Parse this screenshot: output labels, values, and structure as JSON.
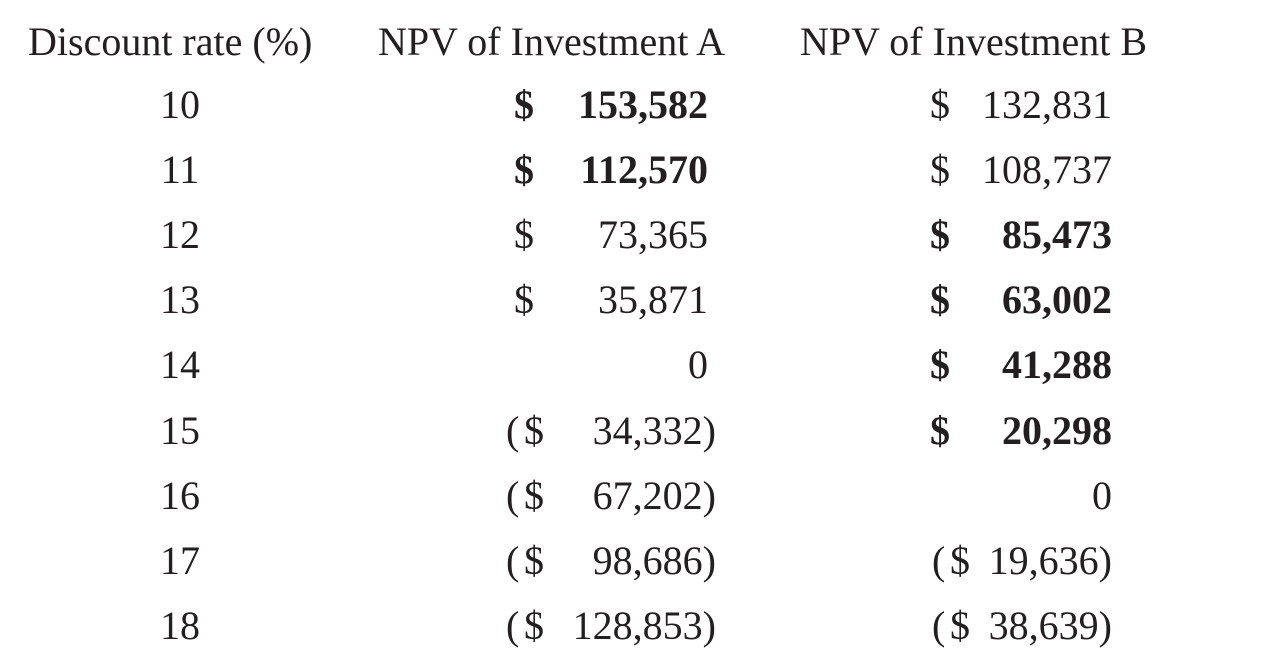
{
  "headers": {
    "rate": "Discount rate (%)",
    "a": "NPV of Investment A",
    "b": "NPV of Investment B"
  },
  "rows": [
    {
      "rate": "10",
      "a": {
        "cur": "$",
        "num": "153,582",
        "neg": false,
        "bold": true
      },
      "b": {
        "cur": "$",
        "num": "132,831",
        "neg": false,
        "bold": false
      }
    },
    {
      "rate": "11",
      "a": {
        "cur": "$",
        "num": "112,570",
        "neg": false,
        "bold": true
      },
      "b": {
        "cur": "$",
        "num": "108,737",
        "neg": false,
        "bold": false
      }
    },
    {
      "rate": "12",
      "a": {
        "cur": "$",
        "num": "73,365",
        "neg": false,
        "bold": false
      },
      "b": {
        "cur": "$",
        "num": "85,473",
        "neg": false,
        "bold": true
      }
    },
    {
      "rate": "13",
      "a": {
        "cur": "$",
        "num": "35,871",
        "neg": false,
        "bold": false
      },
      "b": {
        "cur": "$",
        "num": "63,002",
        "neg": false,
        "bold": true
      }
    },
    {
      "rate": "14",
      "a": {
        "cur": "",
        "num": "0",
        "neg": false,
        "bold": false
      },
      "b": {
        "cur": "$",
        "num": "41,288",
        "neg": false,
        "bold": true
      }
    },
    {
      "rate": "15",
      "a": {
        "cur": "$",
        "num": "34,332",
        "neg": true,
        "bold": false
      },
      "b": {
        "cur": "$",
        "num": "20,298",
        "neg": false,
        "bold": true
      }
    },
    {
      "rate": "16",
      "a": {
        "cur": "$",
        "num": "67,202",
        "neg": true,
        "bold": false
      },
      "b": {
        "cur": "",
        "num": "0",
        "neg": false,
        "bold": false
      }
    },
    {
      "rate": "17",
      "a": {
        "cur": "$",
        "num": "98,686",
        "neg": true,
        "bold": false
      },
      "b": {
        "cur": "$",
        "num": "19,636",
        "neg": true,
        "bold": false
      }
    },
    {
      "rate": "18",
      "a": {
        "cur": "$",
        "num": "128,853",
        "neg": true,
        "bold": false
      },
      "b": {
        "cur": "$",
        "num": "38,639",
        "neg": true,
        "bold": false
      }
    }
  ]
}
